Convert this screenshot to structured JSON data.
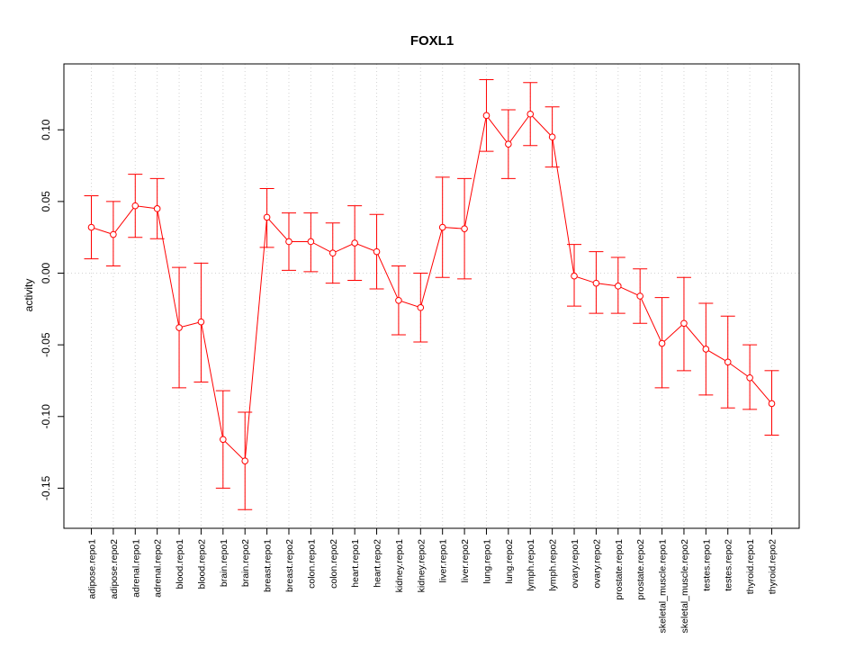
{
  "chart_data": {
    "type": "line",
    "title": "FOXL1",
    "xlabel": "",
    "ylabel": "activity",
    "ylim": [
      -0.178,
      0.146
    ],
    "yticks": [
      -0.15,
      -0.1,
      -0.05,
      0.0,
      0.05,
      0.1
    ],
    "ytick_labels": [
      "-0.15",
      "-0.10",
      "-0.05",
      "0.00",
      "0.05",
      "0.10"
    ],
    "grid": "dotted vertical at each category, horizontal at 0",
    "legend": "none",
    "colors": {
      "series": "#ff0000",
      "grid": "#d3d3d3",
      "axis": "#000000"
    },
    "categories": [
      "adipose.repo1",
      "adipose.repo2",
      "adrenal.repo1",
      "adrenal.repo2",
      "blood.repo1",
      "blood.repo2",
      "brain.repo1",
      "brain.repo2",
      "breast.repo1",
      "breast.repo2",
      "colon.repo1",
      "colon.repo2",
      "heart.repo1",
      "heart.repo2",
      "kidney.repo1",
      "kidney.repo2",
      "liver.repo1",
      "liver.repo2",
      "lung.repo1",
      "lung.repo2",
      "lymph.repo1",
      "lymph.repo2",
      "ovary.repo1",
      "ovary.repo2",
      "prostate.repo1",
      "prostate.repo2",
      "skeletal_muscle.repo1",
      "skeletal_muscle.repo2",
      "testes.repo1",
      "testes.repo2",
      "thyroid.repo1",
      "thyroid.repo2"
    ],
    "values": [
      0.032,
      0.027,
      0.047,
      0.045,
      -0.038,
      -0.034,
      -0.116,
      -0.131,
      0.039,
      0.022,
      0.022,
      0.014,
      0.021,
      0.015,
      -0.019,
      -0.024,
      0.032,
      0.031,
      0.11,
      0.09,
      0.111,
      0.095,
      -0.002,
      -0.007,
      -0.009,
      -0.016,
      -0.049,
      -0.035,
      -0.053,
      -0.062,
      -0.073,
      -0.091
    ],
    "lower": [
      0.01,
      0.005,
      0.025,
      0.024,
      -0.08,
      -0.076,
      -0.15,
      -0.165,
      0.018,
      0.002,
      0.001,
      -0.007,
      -0.005,
      -0.011,
      -0.043,
      -0.048,
      -0.003,
      -0.004,
      0.085,
      0.066,
      0.089,
      0.074,
      -0.023,
      -0.028,
      -0.028,
      -0.035,
      -0.08,
      -0.068,
      -0.085,
      -0.094,
      -0.095,
      -0.113
    ],
    "upper": [
      0.054,
      0.05,
      0.069,
      0.066,
      0.004,
      0.007,
      -0.082,
      -0.097,
      0.059,
      0.042,
      0.042,
      0.035,
      0.047,
      0.041,
      0.005,
      0.0,
      0.067,
      0.066,
      0.135,
      0.114,
      0.133,
      0.116,
      0.02,
      0.015,
      0.011,
      0.003,
      -0.017,
      -0.003,
      -0.021,
      -0.03,
      -0.05,
      -0.068
    ]
  }
}
